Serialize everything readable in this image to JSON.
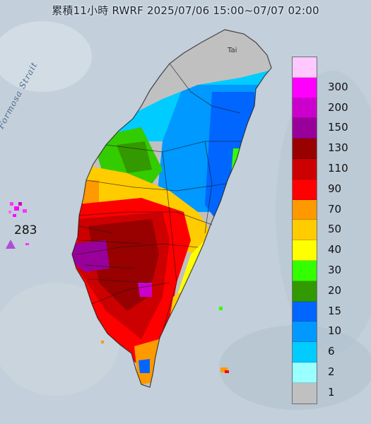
{
  "title": "累積11小時 RWRF 2025/07/06 15:00~07/07 02:00",
  "strait_label": "Formosa Strait",
  "city_labels": [
    "Tai"
  ],
  "station": {
    "value": "283",
    "marker": "triangle-icon"
  },
  "legend": {
    "items": [
      {
        "label": "300",
        "color": "#ffc8ff"
      },
      {
        "label": "200",
        "color": "#ff00ff"
      },
      {
        "label": "150",
        "color": "#cc00cc"
      },
      {
        "label": "130",
        "color": "#990099"
      },
      {
        "label": "110",
        "color": "#990000"
      },
      {
        "label": "90",
        "color": "#cc0000"
      },
      {
        "label": "70",
        "color": "#ff0000"
      },
      {
        "label": "50",
        "color": "#ff9900"
      },
      {
        "label": "40",
        "color": "#ffcc00"
      },
      {
        "label": "30",
        "color": "#ffff00"
      },
      {
        "label": "20",
        "color": "#33ff00"
      },
      {
        "label": "15",
        "color": "#339900"
      },
      {
        "label": "10",
        "color": "#0066ff"
      },
      {
        "label": "6",
        "color": "#0099ff"
      },
      {
        "label": "2",
        "color": "#00ccff"
      },
      {
        "label": "1",
        "color": "#99ffff"
      },
      {
        "label": "",
        "color": "#c0c0c0"
      }
    ]
  }
}
